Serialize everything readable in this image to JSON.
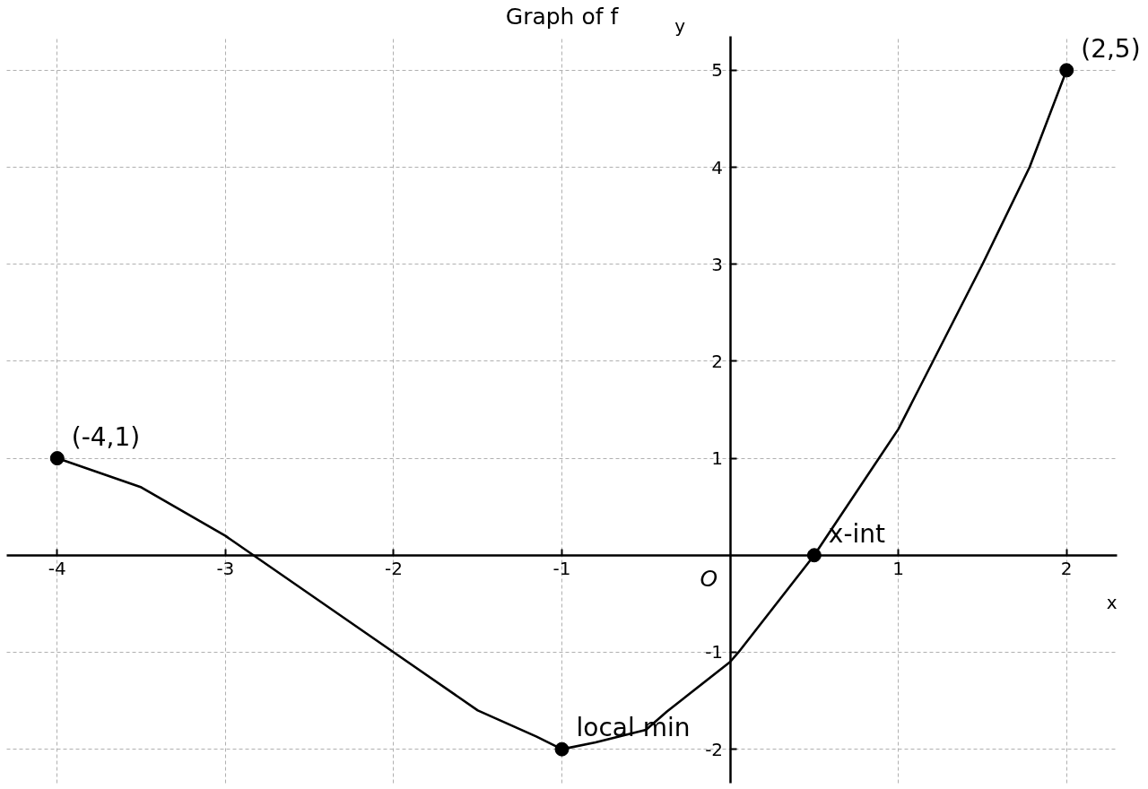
{
  "chart_data": {
    "type": "line",
    "title": "Graph of f",
    "xlabel": "x",
    "ylabel": "y",
    "xlim": [
      -4.3,
      2.3
    ],
    "ylim": [
      -2.35,
      5.35
    ],
    "xticks": [
      -4,
      -3,
      -2,
      -1,
      1,
      2
    ],
    "yticks": [
      -2,
      -1,
      1,
      2,
      3,
      4,
      5
    ],
    "grid": true,
    "series": [
      {
        "color": "#000000",
        "line_style": "solid",
        "x": [
          -4,
          -3.5,
          -3,
          -2,
          -1.5,
          -1.15,
          -1,
          -0.8,
          -0.5,
          -0.375,
          0,
          0.05,
          0.5,
          1,
          1.5,
          1.78,
          2
        ],
        "values": [
          1,
          0.7,
          0.2,
          -1,
          -1.6,
          -1.87,
          -2,
          -1.93,
          -1.8,
          -1.61,
          -1.1,
          -1.0,
          0,
          1.3,
          3,
          4.0,
          5
        ]
      },
      {
        "type": "scatter",
        "color": "#000000",
        "marker": "circle",
        "x": [
          -4,
          -1,
          0.5,
          2
        ],
        "values": [
          1,
          -2,
          0,
          5
        ]
      }
    ],
    "annotations": [
      {
        "text": "(-4,1)",
        "x": -4,
        "y": 1
      },
      {
        "text": "local min",
        "x": -1,
        "y": -2
      },
      {
        "text": "x-int",
        "x": 0.5,
        "y": 0
      },
      {
        "text": "(2,5)",
        "x": 2,
        "y": 5
      },
      "O"
    ]
  }
}
